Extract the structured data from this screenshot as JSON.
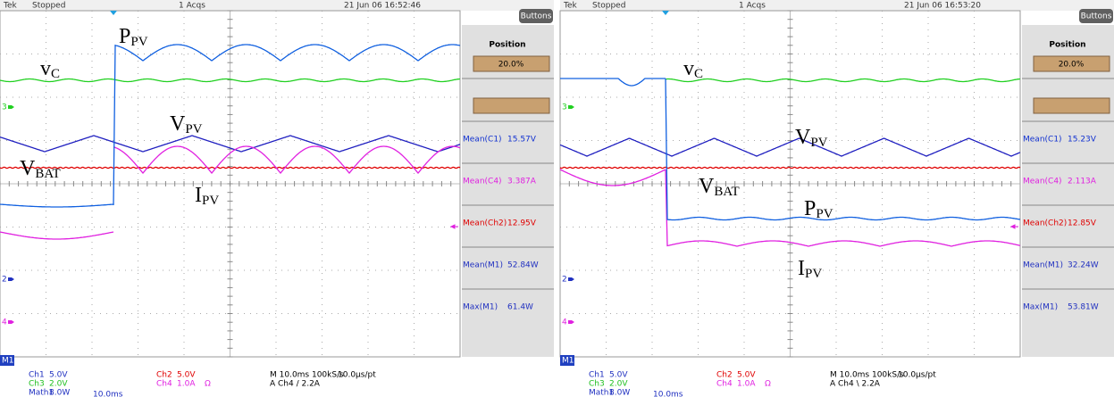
{
  "screens": [
    {
      "header": {
        "brand": "Tek",
        "status": "Stopped",
        "acqs": "1 Acqs",
        "timestamp": "21 Jun 06 16:52:46",
        "button": "Buttons"
      },
      "menu": {
        "title": "Position",
        "value": "20.0%",
        "readouts": [
          {
            "label": "Mean(C1)",
            "value": "15.57V"
          },
          {
            "label": "Mean(C4)",
            "value": "3.387A"
          },
          {
            "label": "Mean(Ch2)",
            "value": "12.95V"
          },
          {
            "label": "Mean(M1)",
            "value": "52.84W"
          },
          {
            "label": "Max(M1)",
            "value": "61.4W"
          }
        ]
      },
      "annotations": [
        {
          "main": "P",
          "sub": "PV"
        },
        {
          "main": "v",
          "sub": "C"
        },
        {
          "main": "V",
          "sub": "PV"
        },
        {
          "main": "V",
          "sub": "BAT"
        },
        {
          "main": "I",
          "sub": "PV"
        }
      ],
      "markers": [
        "3",
        "2",
        "4",
        "M1"
      ],
      "footer": {
        "ch1": "Ch1",
        "ch1_scale": "5.0V",
        "ch3": "Ch3",
        "ch3_scale": "2.0V",
        "math1": "Math1",
        "math1_scale": "8.0W",
        "math1_time": "10.0ms",
        "ch2": "Ch2",
        "ch2_scale": "5.0V",
        "ch4": "Ch4",
        "ch4_scale": "1.0A",
        "ch4_unit": "Ω",
        "timebase": "M 10.0ms 100kS/s",
        "resolution": "10.0µs/pt",
        "trigger": "A Ch4 / 2.2A"
      }
    },
    {
      "header": {
        "brand": "Tek",
        "status": "Stopped",
        "acqs": "1 Acqs",
        "timestamp": "21 Jun 06 16:53:20",
        "button": "Buttons"
      },
      "menu": {
        "title": "Position",
        "value": "20.0%",
        "readouts": [
          {
            "label": "Mean(C1)",
            "value": "15.23V"
          },
          {
            "label": "Mean(C4)",
            "value": "2.113A"
          },
          {
            "label": "Mean(Ch2)",
            "value": "12.85V"
          },
          {
            "label": "Mean(M1)",
            "value": "32.24W"
          },
          {
            "label": "Max(M1)",
            "value": "53.81W"
          }
        ]
      },
      "annotations": [
        {
          "main": "v",
          "sub": "C"
        },
        {
          "main": "V",
          "sub": "PV"
        },
        {
          "main": "V",
          "sub": "BAT"
        },
        {
          "main": "P",
          "sub": "PV"
        },
        {
          "main": "I",
          "sub": "PV"
        }
      ],
      "markers": [
        "3",
        "2",
        "4",
        "M1"
      ],
      "footer": {
        "ch1": "Ch1",
        "ch1_scale": "5.0V",
        "ch3": "Ch3",
        "ch3_scale": "2.0V",
        "math1": "Math1",
        "math1_scale": "8.0W",
        "math1_time": "10.0ms",
        "ch2": "Ch2",
        "ch2_scale": "5.0V",
        "ch4": "Ch4",
        "ch4_scale": "1.0A",
        "ch4_unit": "Ω",
        "timebase": "M 10.0ms 100kS/s",
        "resolution": "10.0µs/pt",
        "trigger": "A Ch4 \\ 2.2A"
      }
    }
  ]
}
